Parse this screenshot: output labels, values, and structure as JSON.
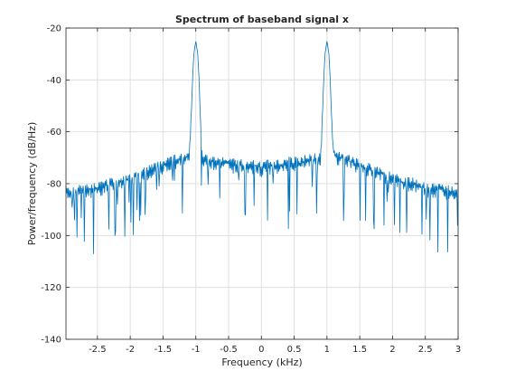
{
  "chart_data": {
    "type": "line",
    "title": "Spectrum of baseband signal x",
    "xlabel": "Frequency (kHz)",
    "ylabel": "Power/frequency (dB/Hz)",
    "xlim": [
      -2.98,
      3.0
    ],
    "ylim": [
      -140,
      -20
    ],
    "xticks": [
      -2.5,
      -2,
      -1.5,
      -1,
      -0.5,
      0,
      0.5,
      1,
      1.5,
      2,
      2.5,
      3
    ],
    "xtick_labels": [
      "-2.5",
      "-2",
      "-1.5",
      "-1",
      "-0.5",
      "0",
      "0.5",
      "1",
      "1.5",
      "2",
      "2.5",
      "3"
    ],
    "yticks": [
      -140,
      -120,
      -100,
      -80,
      -60,
      -40,
      -20
    ],
    "ytick_labels": [
      "-140",
      "-120",
      "-100",
      "-80",
      "-60",
      "-40",
      "-20"
    ],
    "grid": true,
    "line_color": "#0072bd",
    "series": [
      {
        "x": [
          -2.98,
          -2.9,
          -2.8,
          -2.7,
          -2.6,
          -2.5,
          -2.4,
          -2.3,
          -2.2,
          -2.1,
          -2.0,
          -1.9,
          -1.8,
          -1.7,
          -1.6,
          -1.5,
          -1.4,
          -1.3,
          -1.2,
          -1.15,
          -1.1,
          -1.07,
          -1.05,
          -1.03,
          -1.0,
          -0.97,
          -0.95,
          -0.93,
          -0.9,
          -0.85,
          -0.8,
          -0.7,
          -0.6,
          -0.5,
          -0.4,
          -0.3,
          -0.2,
          -0.1,
          0.0,
          0.1,
          0.2,
          0.3,
          0.4,
          0.5,
          0.6,
          0.7,
          0.8,
          0.85,
          0.9,
          0.93,
          0.95,
          0.97,
          1.0,
          1.03,
          1.05,
          1.07,
          1.1,
          1.15,
          1.2,
          1.3,
          1.4,
          1.5,
          1.6,
          1.7,
          1.8,
          1.9,
          2.0,
          2.1,
          2.2,
          2.3,
          2.4,
          2.5,
          2.6,
          2.7,
          2.8,
          2.9,
          3.0
        ],
        "y": [
          -83,
          -83,
          -83,
          -82,
          -82,
          -82,
          -81,
          -80,
          -80,
          -79,
          -78,
          -77,
          -76,
          -75,
          -74,
          -73,
          -72,
          -71,
          -70,
          -70,
          -68,
          -55,
          -40,
          -30,
          -25,
          -30,
          -40,
          -55,
          -70,
          -71,
          -71,
          -72,
          -72,
          -72,
          -73,
          -73,
          -73,
          -73,
          -74,
          -73,
          -73,
          -73,
          -72,
          -72,
          -72,
          -71,
          -71,
          -70,
          -70,
          -55,
          -40,
          -30,
          -25,
          -30,
          -40,
          -55,
          -68,
          -70,
          -70,
          -71,
          -72,
          -73,
          -74,
          -75,
          -76,
          -77,
          -78,
          -79,
          -80,
          -80,
          -81,
          -82,
          -82,
          -82,
          -83,
          -83,
          -83
        ]
      }
    ]
  }
}
